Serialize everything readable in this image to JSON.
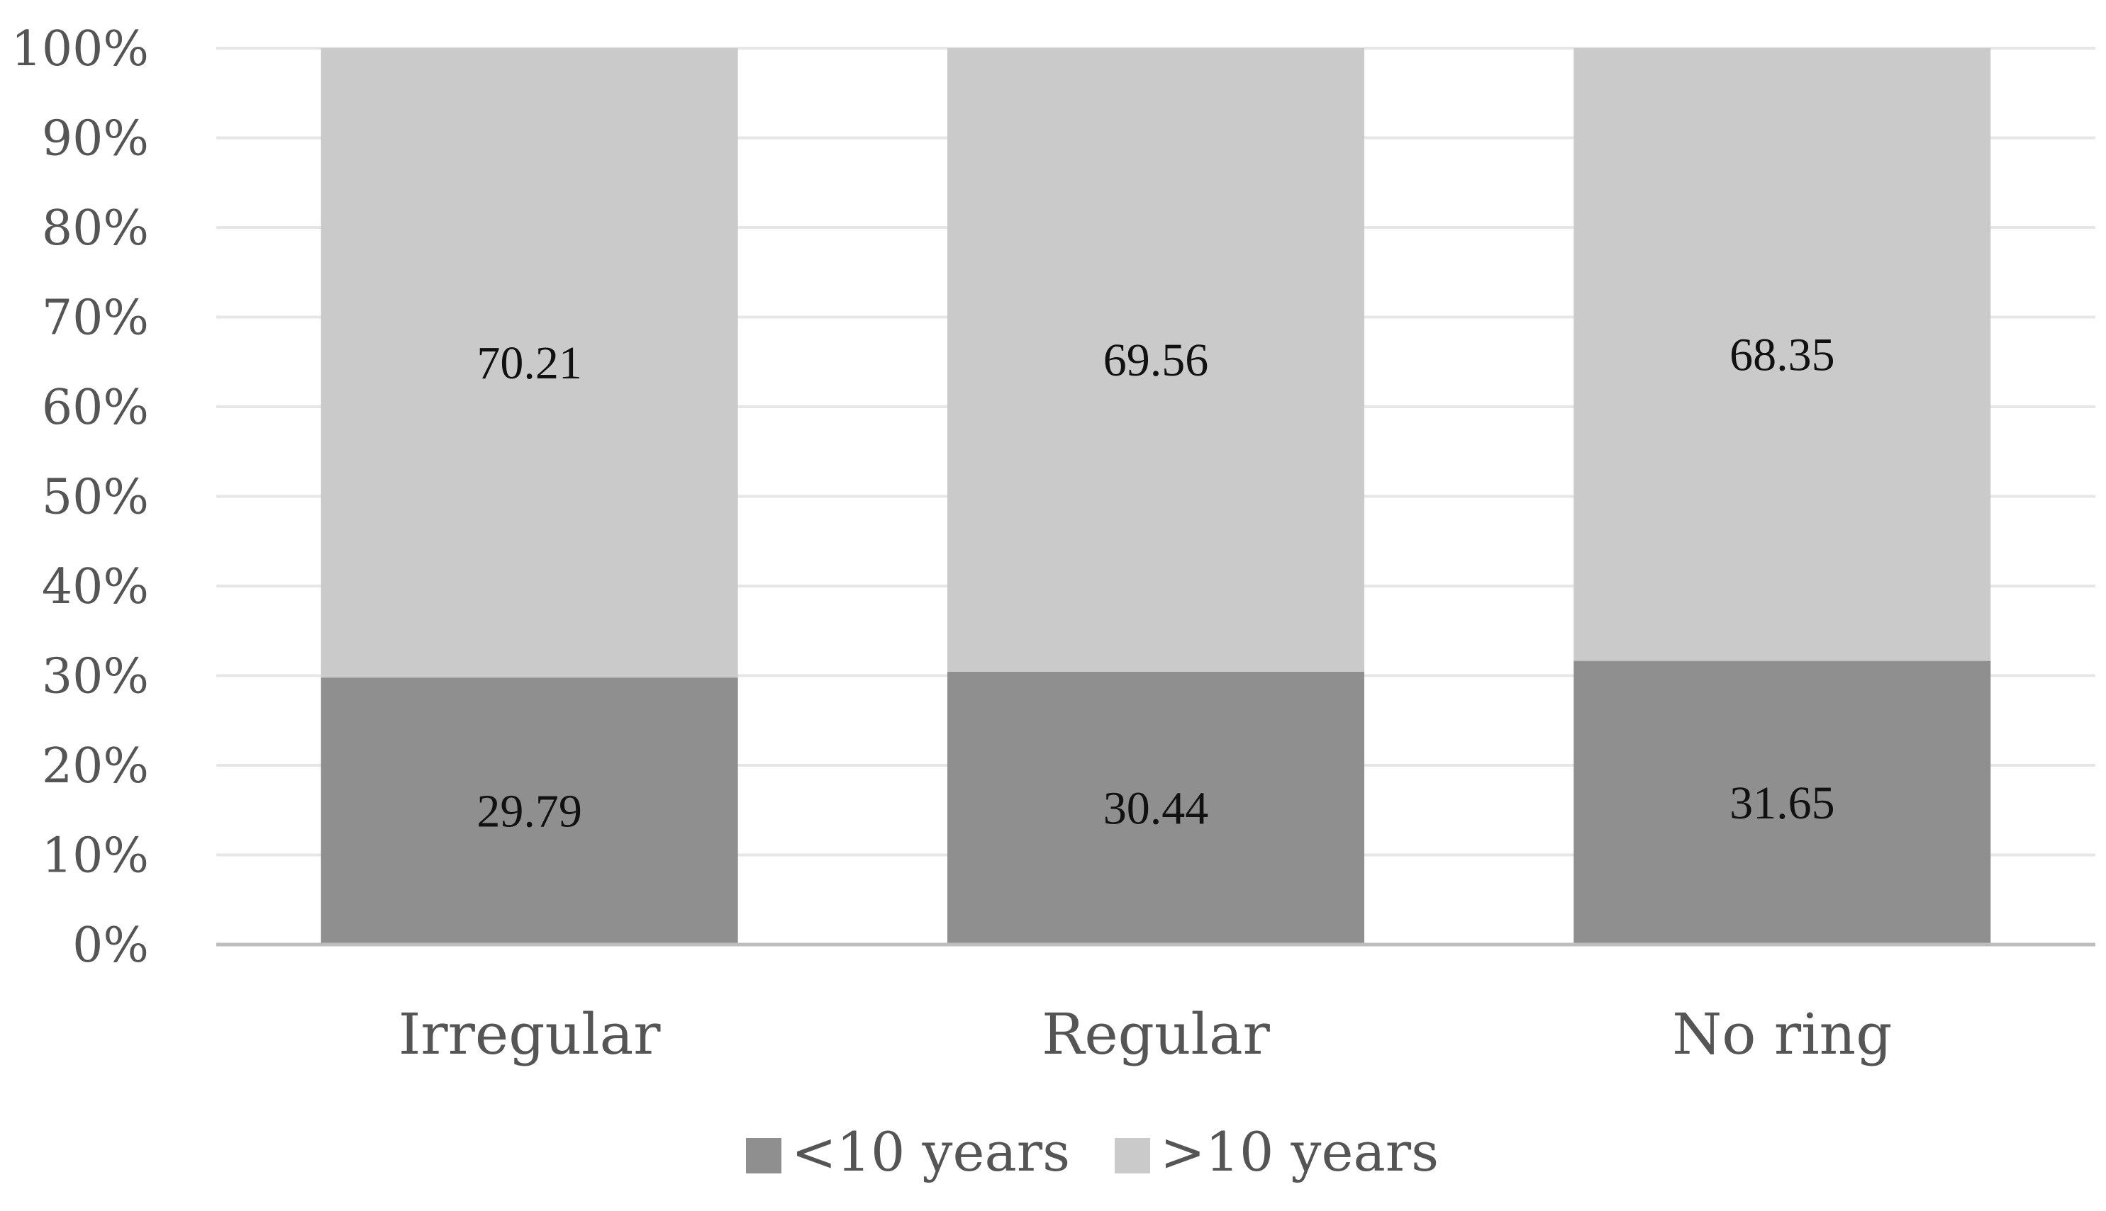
{
  "chart_data": {
    "type": "bar",
    "stacked": true,
    "percent": true,
    "categories": [
      "Irregular",
      "Regular",
      "No ring"
    ],
    "series": [
      {
        "name": "<10 years",
        "values": [
          29.79,
          30.44,
          31.65
        ],
        "color": "#8f8f8f"
      },
      {
        "name": ">10 years",
        "values": [
          70.21,
          69.56,
          68.35
        ],
        "color": "#cacaca"
      }
    ],
    "ylim": [
      0,
      100
    ],
    "yticks": [
      "0%",
      "10%",
      "20%",
      "30%",
      "40%",
      "50%",
      "60%",
      "70%",
      "80%",
      "90%",
      "100%"
    ],
    "grid": true,
    "legend_position": "bottom",
    "gridline_color": "#e6e6e6",
    "axis_color": "#bdbdbd"
  }
}
